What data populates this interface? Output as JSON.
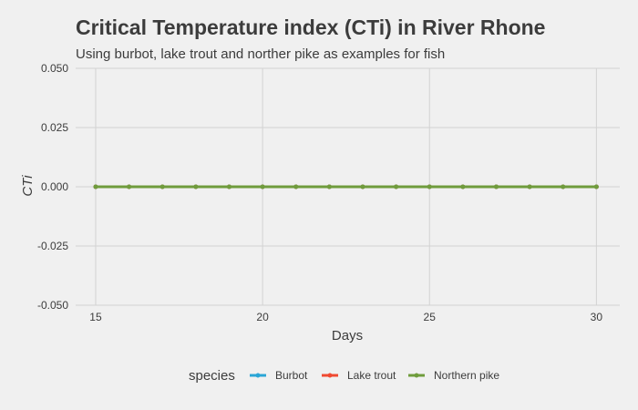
{
  "chart_data": {
    "type": "line",
    "title": "Critical Temperature index (CTi) in River Rhone",
    "subtitle": "Using burbot, lake trout and norther pike as examples for fish",
    "xlabel": "Days",
    "ylabel": "CTi",
    "xlim": [
      14.4,
      30.7
    ],
    "ylim": [
      -0.05,
      0.05
    ],
    "x_ticks": [
      15,
      20,
      25,
      30
    ],
    "y_ticks": [
      -0.05,
      -0.025,
      0.0,
      0.025,
      0.05
    ],
    "y_tick_labels": [
      "-0.050",
      "-0.025",
      "0.000",
      "0.025",
      "0.050"
    ],
    "x": [
      15,
      16,
      17,
      18,
      19,
      20,
      21,
      22,
      23,
      24,
      25,
      26,
      27,
      28,
      29,
      30
    ],
    "series": [
      {
        "name": "Burbot",
        "color": "#2aa5d6",
        "values": [
          0,
          0,
          0,
          0,
          0,
          0,
          0,
          0,
          0,
          0,
          0,
          0,
          0,
          0,
          0,
          0
        ]
      },
      {
        "name": "Lake trout",
        "color": "#f04a32",
        "values": [
          0,
          0,
          0,
          0,
          0,
          0,
          0,
          0,
          0,
          0,
          0,
          0,
          0,
          0,
          0,
          0
        ]
      },
      {
        "name": "Northern pike",
        "color": "#6f9c3c",
        "values": [
          0,
          0,
          0,
          0,
          0,
          0,
          0,
          0,
          0,
          0,
          0,
          0,
          0,
          0,
          0,
          0
        ]
      }
    ],
    "grid": true,
    "legend": {
      "title": "species",
      "position": "bottom"
    }
  }
}
